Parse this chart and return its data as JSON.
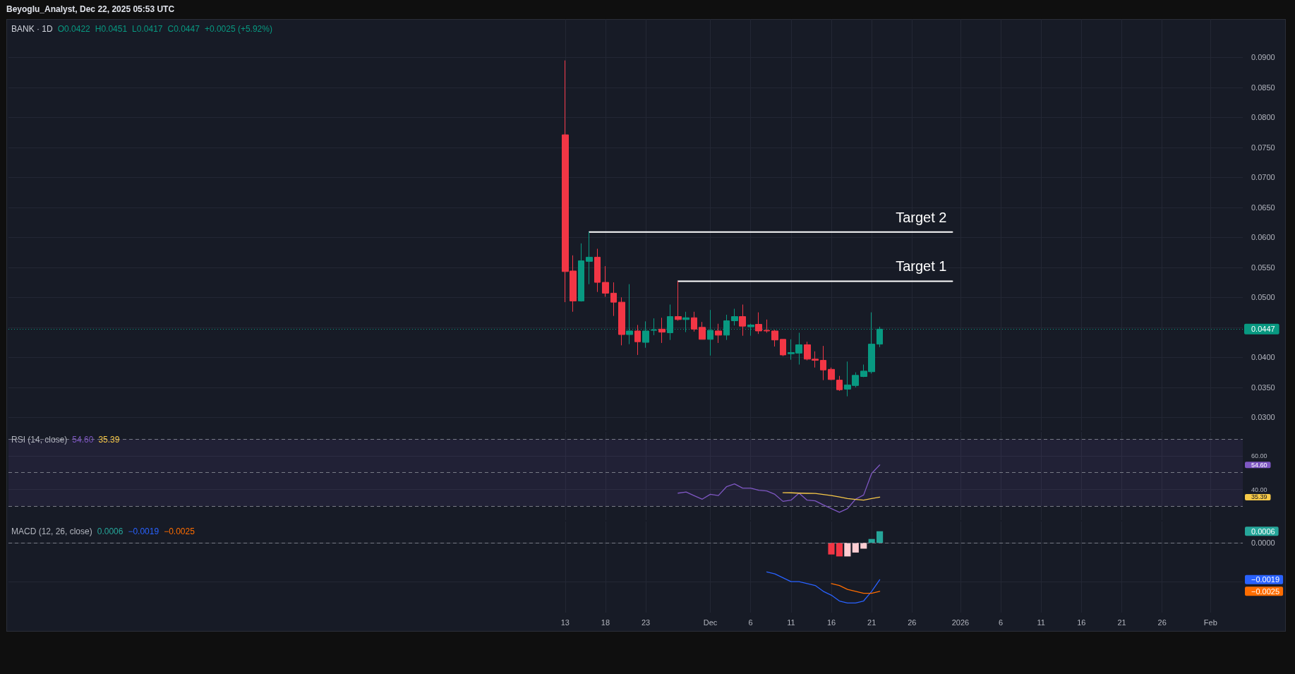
{
  "chart_data": [
    {
      "type": "candlestick",
      "title": "BANK · 1D",
      "subtitle": "Beyoglu_Analyst, Dec 22, 2025 05:53 UTC",
      "annotations": [
        "O0.0422",
        "H0.0451",
        "L0.0417",
        "C0.0447",
        "+0.0025 (+5.92%)"
      ],
      "x": [
        "2025-11-13",
        "2025-11-14",
        "2025-11-15",
        "2025-11-16",
        "2025-11-17",
        "2025-11-18",
        "2025-11-19",
        "2025-11-20",
        "2025-11-21",
        "2025-11-22",
        "2025-11-23",
        "2025-11-24",
        "2025-11-25",
        "2025-11-26",
        "2025-11-27",
        "2025-11-28",
        "2025-11-29",
        "2025-11-30",
        "2025-12-01",
        "2025-12-02",
        "2025-12-03",
        "2025-12-04",
        "2025-12-05",
        "2025-12-06",
        "2025-12-07",
        "2025-12-08",
        "2025-12-09",
        "2025-12-10",
        "2025-12-11",
        "2025-12-12",
        "2025-12-13",
        "2025-12-14",
        "2025-12-15",
        "2025-12-16",
        "2025-12-17",
        "2025-12-18",
        "2025-12-19",
        "2025-12-20",
        "2025-12-21",
        "2025-12-22"
      ],
      "ohlc": [
        [
          0.0771,
          0.0895,
          0.0492,
          0.0543
        ],
        [
          0.0544,
          0.057,
          0.0476,
          0.0494
        ],
        [
          0.0494,
          0.059,
          0.0493,
          0.0561
        ],
        [
          0.056,
          0.0609,
          0.0522,
          0.0567
        ],
        [
          0.0567,
          0.0581,
          0.0509,
          0.0525
        ],
        [
          0.0525,
          0.0552,
          0.0501,
          0.0507
        ],
        [
          0.0507,
          0.0525,
          0.0469,
          0.0492
        ],
        [
          0.0492,
          0.05,
          0.042,
          0.0438
        ],
        [
          0.0438,
          0.0522,
          0.0422,
          0.0444
        ],
        [
          0.0444,
          0.0454,
          0.0404,
          0.0426
        ],
        [
          0.0425,
          0.046,
          0.0416,
          0.0444
        ],
        [
          0.0445,
          0.0465,
          0.0437,
          0.0446
        ],
        [
          0.0447,
          0.0466,
          0.0424,
          0.0442
        ],
        [
          0.0441,
          0.0488,
          0.0429,
          0.0468
        ],
        [
          0.0468,
          0.0527,
          0.0461,
          0.0463
        ],
        [
          0.0463,
          0.0476,
          0.0442,
          0.0466
        ],
        [
          0.0466,
          0.0476,
          0.0443,
          0.0447
        ],
        [
          0.045,
          0.0459,
          0.043,
          0.043
        ],
        [
          0.043,
          0.0479,
          0.0403,
          0.0445
        ],
        [
          0.0444,
          0.0456,
          0.0424,
          0.0437
        ],
        [
          0.0437,
          0.0471,
          0.0429,
          0.0461
        ],
        [
          0.0461,
          0.0481,
          0.0453,
          0.0468
        ],
        [
          0.0468,
          0.0488,
          0.0436,
          0.0452
        ],
        [
          0.0451,
          0.0456,
          0.0436,
          0.0454
        ],
        [
          0.0455,
          0.0475,
          0.0439,
          0.0444
        ],
        [
          0.0445,
          0.0463,
          0.0441,
          0.0444
        ],
        [
          0.0444,
          0.0446,
          0.0418,
          0.0429
        ],
        [
          0.043,
          0.043,
          0.0402,
          0.0404
        ],
        [
          0.0406,
          0.043,
          0.0396,
          0.0408
        ],
        [
          0.0407,
          0.0441,
          0.0388,
          0.0421
        ],
        [
          0.0421,
          0.0426,
          0.0395,
          0.0397
        ],
        [
          0.0397,
          0.041,
          0.0383,
          0.0395
        ],
        [
          0.0395,
          0.0419,
          0.0362,
          0.0379
        ],
        [
          0.038,
          0.0383,
          0.0362,
          0.0363
        ],
        [
          0.0362,
          0.0369,
          0.0344,
          0.0346
        ],
        [
          0.0347,
          0.0393,
          0.0335,
          0.0354
        ],
        [
          0.0353,
          0.0375,
          0.035,
          0.037
        ],
        [
          0.0368,
          0.0388,
          0.0367,
          0.0377
        ],
        [
          0.0376,
          0.0475,
          0.0373,
          0.0422
        ],
        [
          0.0422,
          0.0451,
          0.0417,
          0.0447
        ]
      ],
      "colors": [
        "#f23645",
        "#f23645",
        "#089981",
        "#089981",
        "#f23645",
        "#f23645",
        "#f23645",
        "#f23645",
        "#089981",
        "#f23645",
        "#089981",
        "#089981",
        "#f23645",
        "#089981",
        "#f23645",
        "#089981",
        "#f23645",
        "#f23645",
        "#089981",
        "#f23645",
        "#089981",
        "#089981",
        "#f23645",
        "#089981",
        "#f23645",
        "#f23645",
        "#f23645",
        "#f23645",
        "#089981",
        "#089981",
        "#f23645",
        "#f23645",
        "#f23645",
        "#f23645",
        "#f23645",
        "#089981",
        "#089981",
        "#089981",
        "#089981",
        "#089981"
      ],
      "series": [
        {
          "name": "Target 2",
          "type": "line",
          "x": [
            "2025-11-16",
            "2025-12-31"
          ],
          "values": [
            0.0609,
            0.0609
          ],
          "color": "#ffffff"
        },
        {
          "name": "Target 1",
          "type": "line",
          "x": [
            "2025-11-27",
            "2025-12-31"
          ],
          "values": [
            0.0527,
            0.0527
          ],
          "color": "#ffffff"
        }
      ],
      "xlim": [
        "2025-09-05",
        "2026-02-05"
      ],
      "xticks": [
        {
          "value": "2025-11-13",
          "label": null
        },
        {
          "value": "2025-11-18",
          "label": null
        },
        {
          "value": "2025-11-23",
          "label": null
        },
        {
          "value": "2025-12-01",
          "label": null
        },
        {
          "value": "2025-12-06",
          "label": null
        },
        {
          "value": "2025-12-11",
          "label": null
        },
        {
          "value": "2025-12-16",
          "label": null
        },
        {
          "value": "2025-12-21",
          "label": null
        },
        {
          "value": "2025-12-26",
          "label": null
        },
        {
          "value": "2026-01-01",
          "label": null
        },
        {
          "value": "2026-01-06",
          "label": null
        },
        {
          "value": "2026-01-11",
          "label": null
        },
        {
          "value": "2026-01-16",
          "label": null
        },
        {
          "value": "2026-01-21",
          "label": null
        },
        {
          "value": "2026-01-26",
          "label": null
        },
        {
          "value": "2026-02-01",
          "label": null
        }
      ],
      "ylim": [
        0.0278,
        0.0964
      ],
      "yticks": [
        {
          "value": 0.03,
          "label": "0.0300"
        },
        {
          "value": 0.035,
          "label": "0.0350"
        },
        {
          "value": 0.04,
          "label": "0.0400"
        },
        {
          "value": 0.045,
          "label": null
        },
        {
          "value": 0.05,
          "label": "0.0500"
        },
        {
          "value": 0.055,
          "label": "0.0550"
        },
        {
          "value": 0.06,
          "label": "0.0600"
        },
        {
          "value": 0.065,
          "label": "0.0650"
        },
        {
          "value": 0.07,
          "label": "0.0700"
        },
        {
          "value": 0.075,
          "label": "0.0750"
        },
        {
          "value": 0.08,
          "label": "0.0800"
        },
        {
          "value": 0.085,
          "label": "0.0850"
        },
        {
          "value": 0.09,
          "label": "0.0900"
        }
      ],
      "ref_lines": [
        {
          "axis": "y",
          "value": 0.0447,
          "label": "0.0447",
          "color": "#089981",
          "line_style": "dotted"
        }
      ],
      "grid": true,
      "tick_labels": "y",
      "marker": "none"
    },
    {
      "type": "line",
      "title": "RSI (14, close)",
      "annotations": [
        "54.60",
        "35.39"
      ],
      "series": [
        {
          "color": "#7e57c2",
          "x": [
            "2025-11-27",
            "2025-11-28",
            "2025-11-29",
            "2025-11-30",
            "2025-12-01",
            "2025-12-02",
            "2025-12-03",
            "2025-12-04",
            "2025-12-05",
            "2025-12-06",
            "2025-12-07",
            "2025-12-08",
            "2025-12-09",
            "2025-12-10",
            "2025-12-11",
            "2025-12-12",
            "2025-12-13",
            "2025-12-14",
            "2025-12-15",
            "2025-12-16",
            "2025-12-17",
            "2025-12-18",
            "2025-12-19",
            "2025-12-20",
            "2025-12-21",
            "2025-12-22"
          ],
          "values": [
            37.8,
            38.5,
            36.3,
            34.2,
            37.1,
            36.4,
            41.6,
            43.3,
            40.8,
            40.8,
            39.5,
            39.1,
            37.1,
            32.9,
            33.6,
            37.8,
            33.6,
            33.2,
            30.8,
            28.6,
            26.4,
            28.6,
            34.2,
            36.7,
            49.6,
            54.6
          ]
        },
        {
          "color": "#f7c948",
          "x": [
            "2025-12-10",
            "2025-12-11",
            "2025-12-12",
            "2025-12-13",
            "2025-12-14",
            "2025-12-15",
            "2025-12-16",
            "2025-12-17",
            "2025-12-18",
            "2025-12-19",
            "2025-12-20",
            "2025-12-21",
            "2025-12-22"
          ],
          "values": [
            38.1,
            38.0,
            37.8,
            37.7,
            37.6,
            37.0,
            36.4,
            35.5,
            34.6,
            34.1,
            33.6,
            34.6,
            35.39
          ]
        }
      ],
      "xlim": [
        "2025-09-05",
        "2026-02-05"
      ],
      "xticks": [
        {
          "value": "2025-11-13",
          "label": null
        },
        {
          "value": "2025-11-18",
          "label": null
        },
        {
          "value": "2025-11-23",
          "label": null
        },
        {
          "value": "2025-12-01",
          "label": null
        },
        {
          "value": "2025-12-06",
          "label": null
        },
        {
          "value": "2025-12-11",
          "label": null
        },
        {
          "value": "2025-12-16",
          "label": null
        },
        {
          "value": "2025-12-21",
          "label": null
        },
        {
          "value": "2025-12-26",
          "label": null
        },
        {
          "value": "2026-01-01",
          "label": null
        },
        {
          "value": "2026-01-06",
          "label": null
        },
        {
          "value": "2026-01-11",
          "label": null
        },
        {
          "value": "2026-01-16",
          "label": null
        },
        {
          "value": "2026-01-21",
          "label": null
        },
        {
          "value": "2026-01-26",
          "label": null
        },
        {
          "value": "2026-02-01",
          "label": null
        }
      ],
      "ylim": [
        21.7,
        74.3
      ],
      "yticks": [
        {
          "value": 60,
          "label": "60.00"
        },
        {
          "value": 40,
          "label": "40.00"
        },
        {
          "value": 54.6,
          "label": "54.60"
        },
        {
          "value": 35.39,
          "label": "35.39"
        }
      ],
      "ref_lines": [
        {
          "axis": "y",
          "value": 70,
          "color": "#787b86",
          "line_style": "dashed"
        },
        {
          "axis": "y",
          "value": 50,
          "color": "#787b86",
          "line_style": "dashed"
        },
        {
          "axis": "y",
          "value": 30,
          "color": "#787b86",
          "line_style": "dashed"
        }
      ],
      "bands": [
        {
          "axis": "y",
          "from": 30,
          "to": 70,
          "color": "#7e57c2"
        }
      ],
      "grid": true,
      "tick_labels": "y",
      "marker": "none"
    },
    {
      "type": "line",
      "title": "MACD (12, 26, close)",
      "annotations": [
        "0.0006",
        "−0.0019",
        "−0.0025"
      ],
      "series": [
        {
          "type": "bar",
          "x": [
            "2025-12-16",
            "2025-12-17",
            "2025-12-18",
            "2025-12-19",
            "2025-12-20",
            "2025-12-21",
            "2025-12-22"
          ],
          "values": [
            -0.0006,
            -0.0007,
            -0.0007,
            -0.0005,
            -0.0003,
            0.0002,
            0.0006
          ],
          "colors": [
            "#f23645",
            "#f23645",
            "#ffcdd2",
            "#ffcdd2",
            "#ffcdd2",
            "#26a69a",
            "#26a69a"
          ]
        },
        {
          "color": "#2962ff",
          "x": [
            "2025-12-08",
            "2025-12-09",
            "2025-12-10",
            "2025-12-11",
            "2025-12-12",
            "2025-12-13",
            "2025-12-14",
            "2025-12-15",
            "2025-12-16",
            "2025-12-17",
            "2025-12-18",
            "2025-12-19",
            "2025-12-20",
            "2025-12-21",
            "2025-12-22"
          ],
          "values": [
            -0.0015,
            -0.0016,
            -0.0018,
            -0.002,
            -0.002,
            -0.0021,
            -0.0022,
            -0.0025,
            -0.0027,
            -0.003,
            -0.0031,
            -0.0031,
            -0.003,
            -0.0025,
            -0.0019
          ]
        },
        {
          "color": "#ff6d00",
          "x": [
            "2025-12-16",
            "2025-12-17",
            "2025-12-18",
            "2025-12-19",
            "2025-12-20",
            "2025-12-21",
            "2025-12-22"
          ],
          "values": [
            -0.0021,
            -0.0022,
            -0.0024,
            -0.0025,
            -0.0026,
            -0.0026,
            -0.0025
          ]
        }
      ],
      "xlim": [
        "2025-09-05",
        "2026-02-05"
      ],
      "xticks": [
        {
          "value": "2025-11-13",
          "label": "13"
        },
        {
          "value": "2025-11-18",
          "label": "18"
        },
        {
          "value": "2025-11-23",
          "label": "23"
        },
        {
          "value": "2025-12-01",
          "label": "Dec"
        },
        {
          "value": "2025-12-06",
          "label": "6"
        },
        {
          "value": "2025-12-11",
          "label": "11"
        },
        {
          "value": "2025-12-16",
          "label": "16"
        },
        {
          "value": "2025-12-21",
          "label": "21"
        },
        {
          "value": "2025-12-26",
          "label": "26"
        },
        {
          "value": "2026-01-01",
          "label": "2026"
        },
        {
          "value": "2026-01-06",
          "label": "6"
        },
        {
          "value": "2026-01-11",
          "label": "11"
        },
        {
          "value": "2026-01-16",
          "label": "16"
        },
        {
          "value": "2026-01-21",
          "label": "21"
        },
        {
          "value": "2026-01-26",
          "label": "26"
        },
        {
          "value": "2026-02-01",
          "label": "Feb"
        }
      ],
      "ylim": [
        -0.0036,
        0.0011
      ],
      "yticks": [
        {
          "value": 0,
          "label": "0.0000"
        },
        {
          "value": -0.002,
          "label": null
        },
        {
          "value": 0.0006,
          "label": "0.0006"
        },
        {
          "value": -0.0019,
          "label": "−0.0019"
        },
        {
          "value": -0.0025,
          "label": "−0.0025"
        }
      ],
      "ref_lines": [
        {
          "axis": "y",
          "value": 0,
          "color": "#787b86",
          "line_style": "dashed"
        }
      ],
      "grid": true,
      "marker": "none"
    }
  ]
}
